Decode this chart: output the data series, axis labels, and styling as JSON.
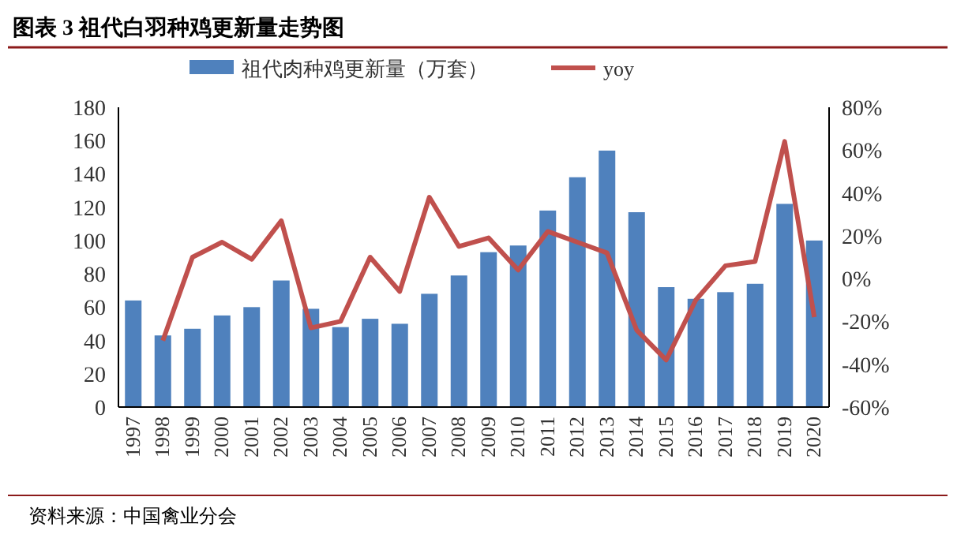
{
  "chart_data": {
    "type": "bar",
    "title": "图表 3 祖代白羽种鸡更新量走势图",
    "categories": [
      "1997",
      "1998",
      "1999",
      "2000",
      "2001",
      "2002",
      "2003",
      "2004",
      "2005",
      "2006",
      "2007",
      "2008",
      "2009",
      "2010",
      "2011",
      "2012",
      "2013",
      "2014",
      "2015",
      "2016",
      "2017",
      "2018",
      "2019",
      "2020"
    ],
    "series": [
      {
        "name": "祖代肉种鸡更新量（万套）",
        "color": "#4f81bd",
        "values": [
          64,
          43,
          47,
          55,
          60,
          76,
          59,
          48,
          53,
          50,
          68,
          79,
          93,
          97,
          118,
          138,
          154,
          117,
          72,
          65,
          69,
          74,
          122,
          100
        ]
      },
      {
        "name": "yoy",
        "color": "#c0504d",
        "type": "line",
        "axis": "y2",
        "values": [
          null,
          -29,
          10,
          17,
          9,
          27,
          -23,
          -20,
          10,
          -6,
          38,
          15,
          19,
          4,
          22,
          17,
          12,
          -24,
          -38,
          -10,
          6,
          8,
          64,
          -18
        ]
      }
    ],
    "ylim": [
      0,
      180
    ],
    "yticks": [
      0,
      20,
      40,
      60,
      80,
      100,
      120,
      140,
      160,
      180
    ],
    "y2lim": [
      -60,
      80
    ],
    "y2ticks": [
      {
        "value": -60,
        "label": "-60%"
      },
      {
        "value": -40,
        "label": "-40%"
      },
      {
        "value": -20,
        "label": "-20%"
      },
      {
        "value": 0,
        "label": "0%"
      },
      {
        "value": 20,
        "label": "20%"
      },
      {
        "value": 40,
        "label": "40%"
      },
      {
        "value": 60,
        "label": "60%"
      },
      {
        "value": 80,
        "label": "80%"
      }
    ],
    "legend": "top",
    "grid": false,
    "annotations": [
      "资料来源：中国禽业分会"
    ]
  }
}
